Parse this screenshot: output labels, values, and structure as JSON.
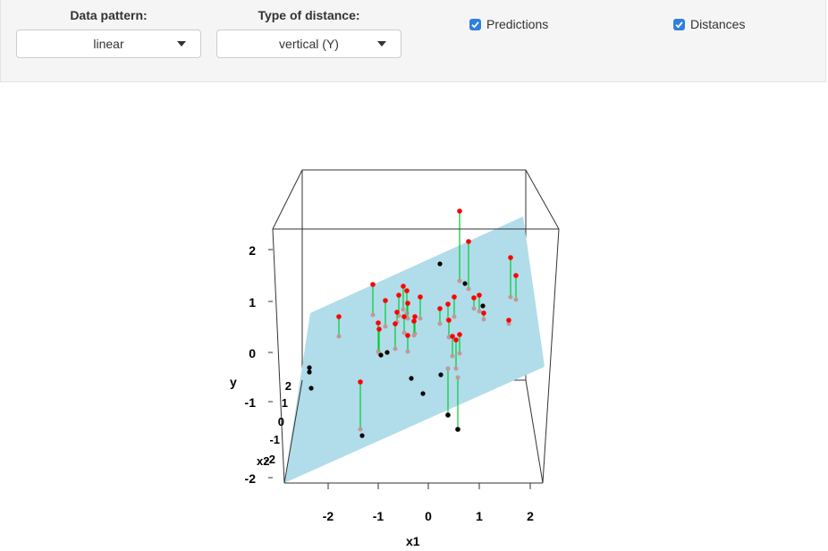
{
  "controls": {
    "data_pattern": {
      "label": "Data pattern:",
      "value": "linear"
    },
    "distance_type": {
      "label": "Type of distance:",
      "value": "vertical (Y)"
    },
    "predictions": {
      "label": "Predictions",
      "checked": true
    },
    "distances": {
      "label": "Distances",
      "checked": true
    }
  },
  "plot": {
    "xlabel": "x1",
    "ylabel": "y",
    "zlabel": "x2",
    "x_ticks": [
      "-2",
      "-1",
      "0",
      "1",
      "2"
    ],
    "y_ticks": [
      "-2",
      "-1",
      "0",
      "1",
      "2"
    ],
    "z_ticks": [
      "-2",
      "-1",
      "0",
      "1",
      "2"
    ],
    "colors": {
      "plane": "#b0dde9",
      "observed_above": "#ff0000",
      "observed_below": "#000000",
      "predicted": "#bf9999",
      "distance_line": "#00cc33"
    }
  }
}
